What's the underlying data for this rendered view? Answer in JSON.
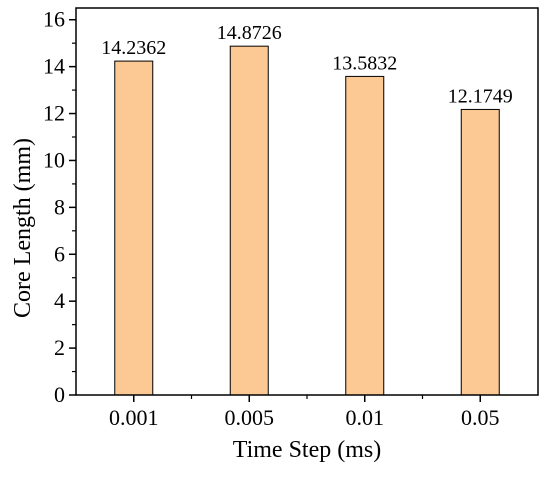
{
  "chart_data": {
    "type": "bar",
    "categories": [
      "0.001",
      "0.005",
      "0.01",
      "0.05"
    ],
    "values": [
      14.2362,
      14.8726,
      13.5832,
      12.1749
    ],
    "data_labels": [
      "14.2362",
      "14.8726",
      "13.5832",
      "12.1749"
    ],
    "xlabel": "Time Step (ms)",
    "ylabel": "Core Length (mm)",
    "ylim": [
      0,
      16.5
    ],
    "yticks": [
      0,
      2,
      4,
      6,
      8,
      10,
      12,
      14,
      16
    ],
    "ytick_labels": [
      "0",
      "2",
      "4",
      "6",
      "8",
      "10",
      "12",
      "14",
      "16"
    ],
    "grid": false,
    "legend": "none",
    "bar_color": "#FCC893",
    "bar_edge_color": "#000000"
  }
}
